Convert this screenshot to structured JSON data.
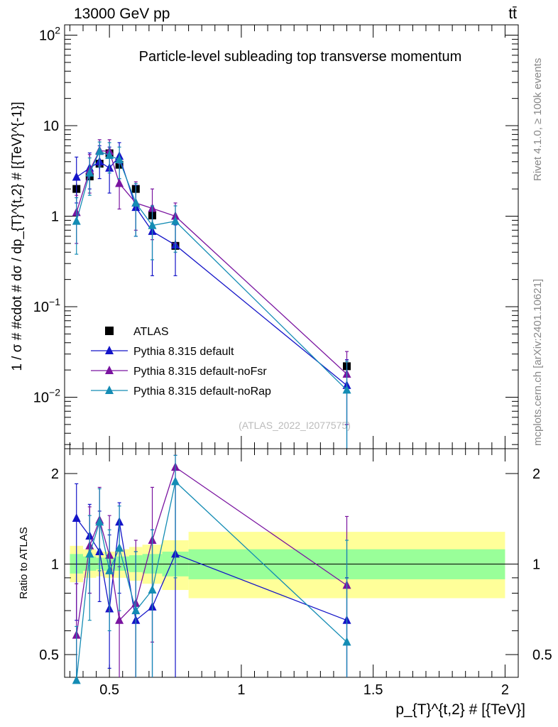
{
  "header": {
    "energy_label": "13000 GeV pp",
    "process_label": "tt̄"
  },
  "side_text": {
    "rivet": "Rivet 4.1.0, ≥ 100k events",
    "mcplots": "mcplots.cern.ch [arXiv:2401.10621]"
  },
  "colors": {
    "atlas": "#000000",
    "default": "#1414c8",
    "noFsr": "#7a14a0",
    "noRap": "#148cb4",
    "band_inner": "#99ff99",
    "band_outer": "#ffff99"
  },
  "chart_data": [
    {
      "type": "scatter",
      "title": "Particle-level subleading top transverse momentum",
      "ylabel": "1 / σ # #cdot # dσ / dp_{T}^{t,2} # [{TeV}^{-1}]",
      "yscale": "log",
      "ylim": [
        0.0027,
        130
      ],
      "xlim": [
        0.33,
        2.05
      ],
      "y_ticks": [
        {
          "value": 0.01,
          "base": "10",
          "exp": "−2"
        },
        {
          "value": 0.1,
          "base": "10",
          "exp": "−1"
        },
        {
          "value": 1,
          "base": "1",
          "exp": ""
        },
        {
          "value": 10,
          "base": "10",
          "exp": ""
        },
        {
          "value": 100,
          "base": "10",
          "exp": "2"
        }
      ],
      "watermark": "(ATLAS_2022_I2077575)",
      "series": [
        {
          "name": "ATLAS",
          "color_key": "atlas",
          "marker": "square",
          "x": [
            0.375,
            0.425,
            0.4625,
            0.5,
            0.5375,
            0.6,
            0.6625,
            0.75,
            1.4
          ],
          "y": [
            2.0,
            2.75,
            3.8,
            4.95,
            3.7,
            2.0,
            1.02,
            0.47,
            0.022
          ],
          "err": [
            0.3,
            0.4,
            0.5,
            0.6,
            0.5,
            0.3,
            0.15,
            0.08,
            0.004
          ]
        },
        {
          "name": "Pythia 8.315 default",
          "color_key": "default",
          "marker": "triangle",
          "x": [
            0.375,
            0.425,
            0.4625,
            0.5,
            0.5375,
            0.6,
            0.6625,
            0.75,
            1.4
          ],
          "y": [
            2.7,
            3.4,
            4.0,
            3.4,
            4.6,
            1.25,
            0.68,
            0.48,
            0.0135
          ],
          "lo": [
            1.4,
            2.0,
            2.6,
            1.8,
            2.6,
            0.6,
            0.22,
            0.22,
            0.0025
          ],
          "hi": [
            4.5,
            5.0,
            6.0,
            5.8,
            6.5,
            2.2,
            1.3,
            0.8,
            0.026
          ]
        },
        {
          "name": "Pythia 8.315 default-noFsr",
          "color_key": "noFsr",
          "marker": "triangle",
          "x": [
            0.375,
            0.425,
            0.4625,
            0.5,
            0.5375,
            0.6,
            0.6625,
            0.75,
            1.4
          ],
          "y": [
            1.1,
            3.2,
            5.3,
            5.2,
            2.3,
            1.4,
            1.22,
            1.0,
            0.018
          ],
          "lo": [
            0.5,
            1.8,
            3.6,
            3.3,
            1.2,
            0.7,
            0.55,
            0.5,
            0.005
          ],
          "hi": [
            1.7,
            4.8,
            7.0,
            7.0,
            3.8,
            2.4,
            2.0,
            1.4,
            0.032
          ]
        },
        {
          "name": "Pythia 8.315 default-noRap",
          "color_key": "noRap",
          "marker": "triangle",
          "x": [
            0.375,
            0.425,
            0.4625,
            0.5,
            0.5375,
            0.6,
            0.6625,
            0.75,
            1.4
          ],
          "y": [
            0.88,
            3.0,
            5.2,
            4.7,
            4.2,
            1.4,
            0.79,
            0.88,
            0.012
          ],
          "lo": [
            0.38,
            1.7,
            3.5,
            3.0,
            2.6,
            0.6,
            0.33,
            0.4,
            0.0012
          ],
          "hi": [
            1.6,
            4.4,
            6.6,
            6.5,
            5.8,
            2.3,
            1.3,
            1.3,
            0.025
          ]
        }
      ]
    },
    {
      "type": "scatter",
      "ylabel": "Ratio to ATLAS",
      "xlabel": "p_{T}^{t,2} # [{TeV}]",
      "yscale": "log",
      "ylim": [
        0.42,
        2.42
      ],
      "xlim": [
        0.33,
        2.05
      ],
      "y_ticks": [
        0.5,
        1,
        2
      ],
      "x_ticks": [
        0.5,
        1,
        1.5,
        2
      ],
      "bands": [
        {
          "x0": 0.35,
          "x1": 0.4,
          "inner": [
            0.93,
            1.08
          ],
          "outer": [
            0.87,
            1.15
          ]
        },
        {
          "x0": 0.4,
          "x1": 0.45,
          "inner": [
            0.95,
            1.06
          ],
          "outer": [
            0.9,
            1.12
          ]
        },
        {
          "x0": 0.45,
          "x1": 0.475,
          "inner": [
            0.96,
            1.05
          ],
          "outer": [
            0.91,
            1.1
          ]
        },
        {
          "x0": 0.475,
          "x1": 0.525,
          "inner": [
            0.95,
            1.05
          ],
          "outer": [
            0.9,
            1.1
          ]
        },
        {
          "x0": 0.525,
          "x1": 0.575,
          "inner": [
            0.95,
            1.06
          ],
          "outer": [
            0.9,
            1.12
          ]
        },
        {
          "x0": 0.575,
          "x1": 0.625,
          "inner": [
            0.94,
            1.07
          ],
          "outer": [
            0.88,
            1.14
          ]
        },
        {
          "x0": 0.625,
          "x1": 0.7,
          "inner": [
            0.93,
            1.08
          ],
          "outer": [
            0.86,
            1.16
          ]
        },
        {
          "x0": 0.7,
          "x1": 0.8,
          "inner": [
            0.91,
            1.1
          ],
          "outer": [
            0.82,
            1.2
          ]
        },
        {
          "x0": 0.8,
          "x1": 2.0,
          "inner": [
            0.89,
            1.12
          ],
          "outer": [
            0.77,
            1.28
          ]
        }
      ],
      "series": [
        {
          "name": "Pythia 8.315 default",
          "color_key": "default",
          "x": [
            0.375,
            0.425,
            0.4625,
            0.5,
            0.5375,
            0.6,
            0.6625,
            0.75,
            1.4
          ],
          "y": [
            1.42,
            1.24,
            1.1,
            0.71,
            1.38,
            0.65,
            0.72,
            1.08,
            0.65
          ],
          "lo": [
            0.65,
            0.8,
            0.75,
            0.45,
            0.8,
            0.4,
            0.3,
            0.4,
            0.38
          ],
          "hi": [
            1.85,
            1.58,
            1.5,
            1.25,
            1.6,
            1.1,
            1.3,
            1.9,
            0.9
          ]
        },
        {
          "name": "Pythia 8.315 default-noFsr",
          "color_key": "noFsr",
          "x": [
            0.375,
            0.425,
            0.4625,
            0.5,
            0.5375,
            0.6,
            0.6625,
            0.75,
            1.4
          ],
          "y": [
            0.58,
            1.15,
            1.4,
            1.07,
            0.65,
            0.74,
            1.2,
            2.1,
            0.85
          ],
          "lo": [
            0.4,
            0.8,
            1.0,
            0.7,
            0.37,
            0.4,
            0.55,
            1.0,
            0.42
          ],
          "hi": [
            0.86,
            1.55,
            1.8,
            1.45,
            0.98,
            1.2,
            1.8,
            2.3,
            1.44
          ]
        },
        {
          "name": "Pythia 8.315 default-noRap",
          "color_key": "noRap",
          "x": [
            0.375,
            0.425,
            0.4625,
            0.5,
            0.5375,
            0.6,
            0.6625,
            0.75,
            1.4
          ],
          "y": [
            0.41,
            1.08,
            1.38,
            0.95,
            1.13,
            0.7,
            0.82,
            1.88,
            0.55
          ],
          "lo": [
            0.3,
            0.65,
            0.95,
            0.6,
            0.7,
            0.4,
            0.4,
            0.9,
            0.3
          ],
          "hi": [
            0.62,
            1.45,
            1.78,
            1.3,
            1.56,
            1.1,
            1.3,
            2.3,
            1.2
          ]
        }
      ]
    }
  ]
}
